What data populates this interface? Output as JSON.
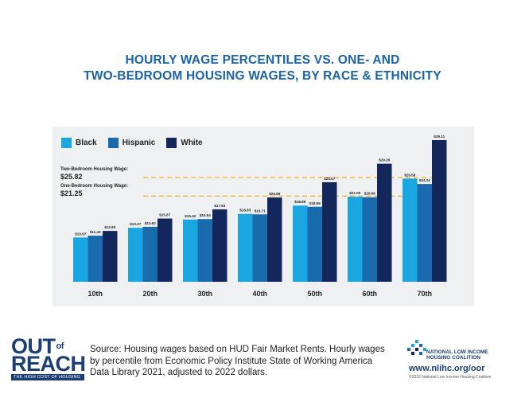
{
  "header": {
    "title_line1": "HOURLY WAGE PERCENTILES VS. ONE- AND",
    "title_line2": "TWO-BEDROOM HOUSING WAGES, BY RACE & ETHNICITY"
  },
  "legend": {
    "black": "Black",
    "hispanic": "Hispanic",
    "white": "White"
  },
  "reference_lines": {
    "two_bedroom_label": "Two-Bedroom Housing Wage:",
    "two_bedroom_value": "$25.82",
    "one_bedroom_label": "One-Bedroom Housing Wage:",
    "one_bedroom_value": "$21.25"
  },
  "colors": {
    "black": "#1aa6e0",
    "hispanic": "#1a6aae",
    "white": "#13275c",
    "ref_line": "#f2b43a",
    "title": "#1b63a8"
  },
  "chart_data": {
    "type": "bar",
    "categories": [
      "10th",
      "20th",
      "30th",
      "40th",
      "50th",
      "60th",
      "70th"
    ],
    "series": [
      {
        "name": "Black",
        "values": [
          10.97,
          13.37,
          15.42,
          16.83,
          18.89,
          21.09,
          25.58
        ],
        "labels": [
          "$10.97",
          "$13.37",
          "$15.42",
          "$16.83",
          "$18.89",
          "$21.09",
          "$25.58"
        ]
      },
      {
        "name": "Hispanic",
        "values": [
          11.43,
          13.62,
          15.54,
          16.71,
          18.59,
          20.96,
          24.24
        ],
        "labels": [
          "$11.43",
          "$13.62",
          "$15.54",
          "$16.71",
          "$18.59",
          "$20.96",
          "$24.24"
        ]
      },
      {
        "name": "White",
        "values": [
          12.6,
          15.67,
          17.93,
          20.89,
          24.67,
          29.26,
          35.11
        ],
        "labels": [
          "$12.60",
          "$15.67",
          "$17.93",
          "$20.89",
          "$24.67",
          "$29.26",
          "$35.11"
        ]
      }
    ],
    "reference_lines": [
      {
        "name": "Two-Bedroom Housing Wage",
        "value": 25.82
      },
      {
        "name": "One-Bedroom Housing Wage",
        "value": 21.25
      }
    ],
    "ylim": [
      0,
      35.11
    ],
    "grid": false,
    "legend_position": "top-left"
  },
  "footer": {
    "logo_out": "OUT",
    "logo_of": "of",
    "logo_reach": "REACH",
    "logo_sub": "THE HIGH COST OF HOUSING",
    "source": "Source: Housing wages based on HUD Fair Market Rents. Hourly wages by percentile from Economic Policy Institute State of Working America Data Library 2021, adjusted to 2022 dollars.",
    "org_line1": "NATIONAL LOW INCOME",
    "org_line2": "HOUSING COALITION",
    "url": "www.nlihc.org/oor",
    "copyright": "©2022 National Low Income Housing Coalition"
  }
}
